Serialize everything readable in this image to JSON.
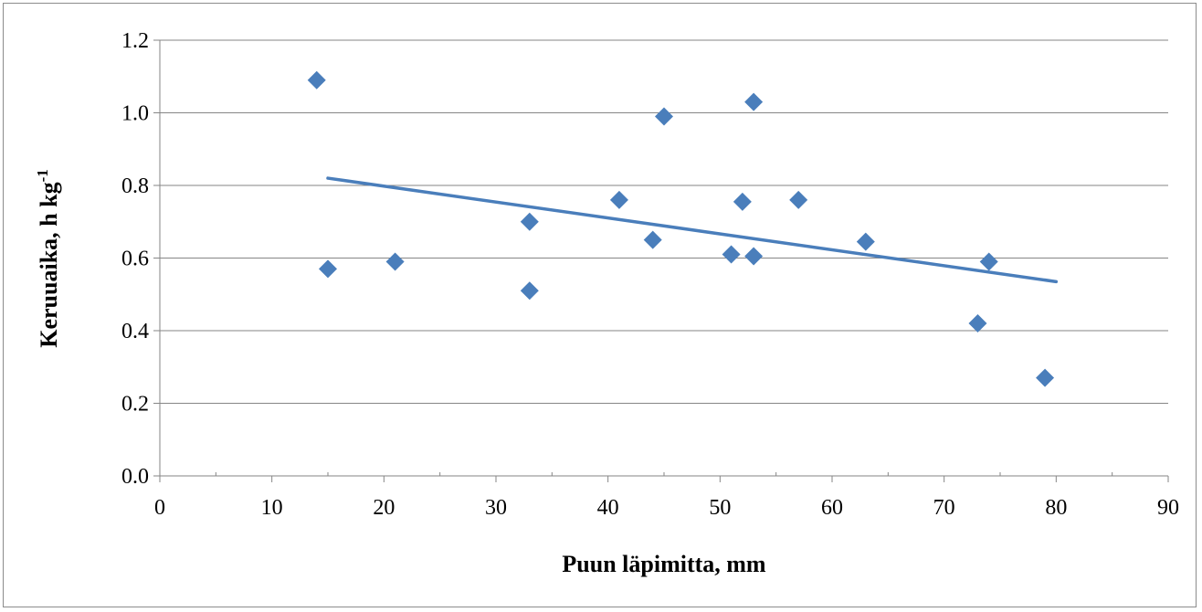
{
  "chart_data": {
    "type": "scatter",
    "xlabel": "Puun läpimitta, mm",
    "ylabel": "Keruuaika,  h kg",
    "ylabel_superscript": "-1",
    "xlim": [
      0,
      90
    ],
    "ylim": [
      0,
      1.2
    ],
    "x_ticks": [
      "0",
      "10",
      "20",
      "30",
      "40",
      "50",
      "60",
      "70",
      "80",
      "90"
    ],
    "y_ticks": [
      "0.0",
      "0.2",
      "0.4",
      "0.6",
      "0.8",
      "1.0",
      "1.2"
    ],
    "grid": "horizontal",
    "points": [
      {
        "x": 14,
        "y": 1.09
      },
      {
        "x": 15,
        "y": 0.57
      },
      {
        "x": 21,
        "y": 0.59
      },
      {
        "x": 33,
        "y": 0.7
      },
      {
        "x": 33,
        "y": 0.51
      },
      {
        "x": 41,
        "y": 0.76
      },
      {
        "x": 44,
        "y": 0.65
      },
      {
        "x": 45,
        "y": 0.99
      },
      {
        "x": 51,
        "y": 0.61
      },
      {
        "x": 52,
        "y": 0.755
      },
      {
        "x": 53,
        "y": 1.03
      },
      {
        "x": 53,
        "y": 0.605
      },
      {
        "x": 57,
        "y": 0.76
      },
      {
        "x": 63,
        "y": 0.645
      },
      {
        "x": 73,
        "y": 0.42
      },
      {
        "x": 74,
        "y": 0.59
      },
      {
        "x": 79,
        "y": 0.27
      }
    ],
    "trendline": {
      "x": [
        15,
        80
      ],
      "y": [
        0.82,
        0.535
      ]
    },
    "colors": {
      "marker": "#4a7ebb",
      "trendline": "#4a7ebb",
      "grid": "#868686",
      "axis": "#868686"
    }
  }
}
